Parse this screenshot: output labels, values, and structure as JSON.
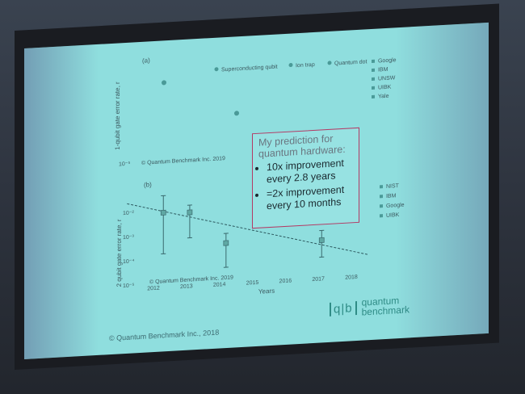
{
  "chart_data": [
    {
      "panel_label": "(a)",
      "type": "scatter",
      "ylabel": "1-qubit gate error rate, r",
      "ytick_labels": [
        "10⁻⁵"
      ],
      "header_legend": [
        "Superconducting qubit",
        "Ion trap",
        "Quantum dot"
      ],
      "side_legend": [
        "Google",
        "IBM",
        "UNSW",
        "UIBK",
        "Yale"
      ],
      "watermark": "© Quantum Benchmark Inc. 2019",
      "points": [
        {
          "label": "a-point-1",
          "color": "#4a9a98"
        },
        {
          "label": "a-point-2",
          "color": "#4a9a98"
        }
      ]
    },
    {
      "panel_label": "(b)",
      "type": "scatter",
      "xlabel": "Years",
      "ylabel": "2 qubit gate error rate, r",
      "x_ticks": [
        2012,
        2013,
        2014,
        2015,
        2016,
        2017,
        2018
      ],
      "ytick_labels": [
        "10⁻²",
        "10⁻³",
        "10⁻⁴",
        "10⁻⁵"
      ],
      "ylog_range": [
        -5,
        -1.5
      ],
      "legend": [
        "NIST",
        "IBM",
        "Google",
        "UIBK"
      ],
      "watermark": "© Quantum Benchmark Inc. 2019",
      "points": [
        {
          "x": 2012.3,
          "y_log": -2.1,
          "err_low": -3.8,
          "err_high": -1.4
        },
        {
          "x": 2013.1,
          "y_log": -2.15,
          "err_low": -3.2,
          "err_high": -1.85
        },
        {
          "x": 2014.2,
          "y_log": -3.5,
          "err_low": -4.5,
          "err_high": -3.1
        },
        {
          "x": 2017.1,
          "y_log": -3.6,
          "err_low": -4.3,
          "err_high": -3.2
        }
      ],
      "trend_line": {
        "x": [
          2011.2,
          2018.5
        ],
        "y_log": [
          -1.65,
          -4.3
        ]
      }
    }
  ],
  "callout": {
    "title": "My prediction for quantum hardware:",
    "bullets": [
      "10x improvement every 2.8 years",
      "=2x improvement every 10 months"
    ]
  },
  "footer": {
    "copyright": "© Quantum Benchmark Inc., 2018"
  },
  "logo": {
    "mark": "q|b",
    "line1": "quantum",
    "line2": "benchmark"
  }
}
